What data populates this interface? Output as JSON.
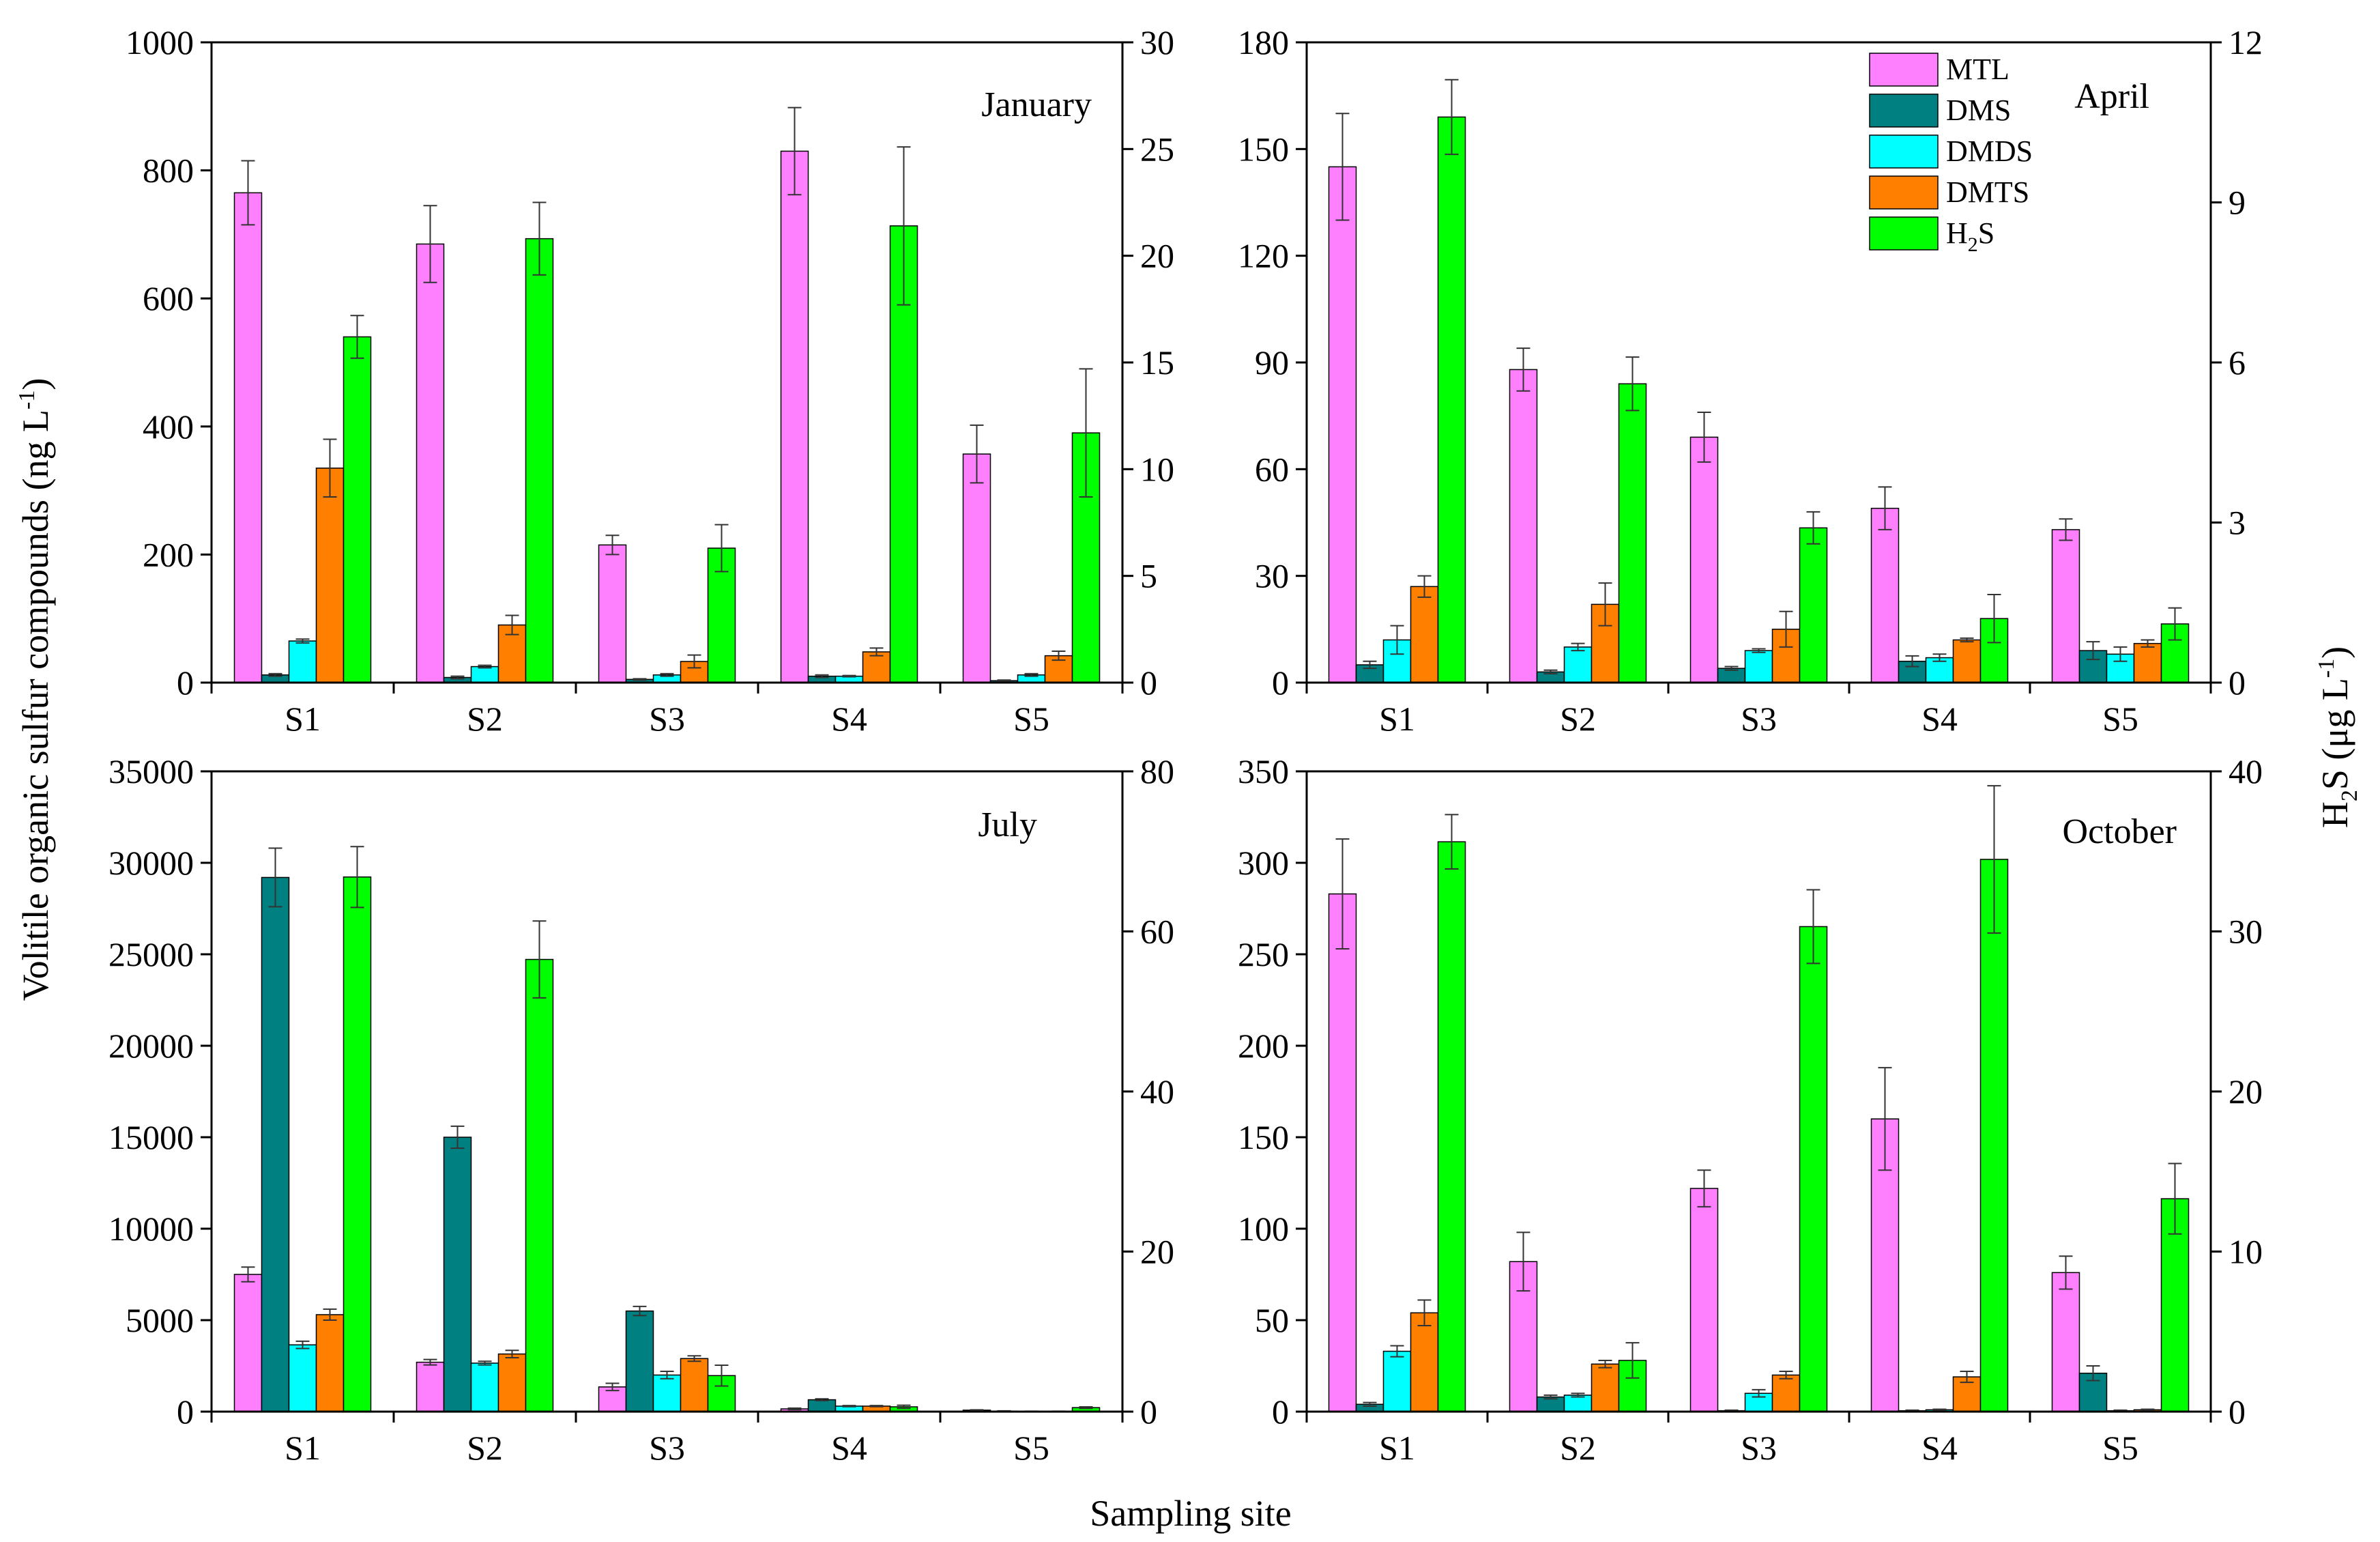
{
  "figure": {
    "y_left_label": "Volitile organic sulfur compounds (ng L",
    "y_left_label_sup": "-1",
    "y_left_label_end": ")",
    "y_right_label_h": "H",
    "y_right_label_sub": "2",
    "y_right_label_rest": "S (μg L",
    "y_right_label_sup": "-1",
    "y_right_label_end": ")",
    "x_label": "Sampling site"
  },
  "legend": [
    {
      "name": "MTL",
      "color": "#ff80ff"
    },
    {
      "name": "DMS",
      "color": "#008080"
    },
    {
      "name": "DMDS",
      "color": "#00ffff"
    },
    {
      "name": "DMTS",
      "color": "#ff8000"
    },
    {
      "name": "H2S",
      "base": "H",
      "sub": "2",
      "rest": "S",
      "color": "#00ff00"
    }
  ],
  "chart_data": [
    {
      "type": "bar",
      "title": "January",
      "categories": [
        "S1",
        "S2",
        "S3",
        "S4",
        "S5"
      ],
      "ylim_left": [
        0,
        1000
      ],
      "yticks_left": [
        0,
        200,
        400,
        600,
        800,
        1000
      ],
      "ylim_right": [
        0,
        30
      ],
      "yticks_right": [
        0,
        5,
        10,
        15,
        20,
        25,
        30
      ],
      "series": [
        {
          "name": "MTL",
          "axis": "left",
          "values": [
            765,
            685,
            215,
            830,
            357
          ],
          "errors": [
            50,
            60,
            15,
            68,
            45
          ]
        },
        {
          "name": "DMS",
          "axis": "left",
          "values": [
            12,
            8,
            5,
            10,
            3
          ],
          "errors": [
            2,
            2,
            1,
            2,
            1
          ]
        },
        {
          "name": "DMDS",
          "axis": "left",
          "values": [
            65,
            25,
            12,
            10,
            12
          ],
          "errors": [
            3,
            2,
            2,
            1,
            2
          ]
        },
        {
          "name": "DMTS",
          "axis": "left",
          "values": [
            335,
            90,
            33,
            48,
            42
          ],
          "errors": [
            45,
            15,
            10,
            6,
            7
          ]
        },
        {
          "name": "H2S",
          "axis": "right",
          "values": [
            16.2,
            20.8,
            6.3,
            21.4,
            11.7
          ],
          "errors": [
            1.0,
            1.7,
            1.1,
            3.7,
            3.0
          ]
        }
      ]
    },
    {
      "type": "bar",
      "title": "April",
      "categories": [
        "S1",
        "S2",
        "S3",
        "S4",
        "S5"
      ],
      "ylim_left": [
        0,
        180
      ],
      "yticks_left": [
        0,
        30,
        60,
        90,
        120,
        150,
        180
      ],
      "ylim_right": [
        0,
        12
      ],
      "yticks_right": [
        0,
        3,
        6,
        9,
        12
      ],
      "series": [
        {
          "name": "MTL",
          "axis": "left",
          "values": [
            145,
            88,
            69,
            49,
            43
          ],
          "errors": [
            15,
            6,
            7,
            6,
            3
          ]
        },
        {
          "name": "DMS",
          "axis": "left",
          "values": [
            5,
            3,
            4,
            6,
            9
          ],
          "errors": [
            1,
            0.5,
            0.5,
            1.5,
            2.5
          ]
        },
        {
          "name": "DMDS",
          "axis": "left",
          "values": [
            12,
            10,
            9,
            7,
            8
          ],
          "errors": [
            4,
            1,
            0.5,
            1,
            2
          ]
        },
        {
          "name": "DMTS",
          "axis": "left",
          "values": [
            27,
            22,
            15,
            12,
            11
          ],
          "errors": [
            3,
            6,
            5,
            0.5,
            1
          ]
        },
        {
          "name": "H2S",
          "axis": "right",
          "values": [
            10.6,
            5.6,
            2.9,
            1.2,
            1.1
          ],
          "errors": [
            0.7,
            0.5,
            0.3,
            0.45,
            0.3
          ]
        }
      ]
    },
    {
      "type": "bar",
      "title": "July",
      "categories": [
        "S1",
        "S2",
        "S3",
        "S4",
        "S5"
      ],
      "ylim_left": [
        0,
        35000
      ],
      "yticks_left": [
        0,
        5000,
        10000,
        15000,
        20000,
        25000,
        30000,
        35000
      ],
      "ylim_right": [
        0,
        80
      ],
      "yticks_right": [
        0,
        20,
        40,
        60,
        80
      ],
      "series": [
        {
          "name": "MTL",
          "axis": "left",
          "values": [
            7500,
            2700,
            1350,
            150,
            80
          ],
          "errors": [
            400,
            150,
            200,
            40,
            20
          ]
        },
        {
          "name": "DMS",
          "axis": "left",
          "values": [
            29200,
            15000,
            5500,
            650,
            30
          ],
          "errors": [
            1600,
            600,
            250,
            50,
            10
          ]
        },
        {
          "name": "DMDS",
          "axis": "left",
          "values": [
            3650,
            2650,
            2000,
            300,
            20
          ],
          "errors": [
            200,
            100,
            200,
            30,
            5
          ]
        },
        {
          "name": "DMTS",
          "axis": "left",
          "values": [
            5300,
            3150,
            2900,
            300,
            20
          ],
          "errors": [
            300,
            200,
            150,
            30,
            5
          ]
        },
        {
          "name": "H2S",
          "axis": "right",
          "values": [
            66.8,
            56.5,
            4.5,
            0.6,
            0.5
          ],
          "errors": [
            3.8,
            4.8,
            1.3,
            0.2,
            0.1
          ]
        }
      ]
    },
    {
      "type": "bar",
      "title": "October",
      "categories": [
        "S1",
        "S2",
        "S3",
        "S4",
        "S5"
      ],
      "ylim_left": [
        0,
        350
      ],
      "yticks_left": [
        0,
        50,
        100,
        150,
        200,
        250,
        300,
        350
      ],
      "ylim_right": [
        0,
        40
      ],
      "yticks_right": [
        0,
        10,
        20,
        30,
        40
      ],
      "series": [
        {
          "name": "MTL",
          "axis": "left",
          "values": [
            283,
            82,
            122,
            160,
            76
          ],
          "errors": [
            30,
            16,
            10,
            28,
            9
          ]
        },
        {
          "name": "DMS",
          "axis": "left",
          "values": [
            4,
            8,
            0.5,
            0.5,
            21
          ],
          "errors": [
            1,
            1,
            0.3,
            0.3,
            4
          ]
        },
        {
          "name": "DMDS",
          "axis": "left",
          "values": [
            33,
            9,
            10,
            1,
            0.5
          ],
          "errors": [
            3,
            1,
            2,
            0.3,
            0.3
          ]
        },
        {
          "name": "DMTS",
          "axis": "left",
          "values": [
            54,
            26,
            20,
            19,
            1
          ],
          "errors": [
            7,
            2,
            2,
            3,
            0.3
          ]
        },
        {
          "name": "H2S",
          "axis": "right",
          "values": [
            35.6,
            3.2,
            30.3,
            34.5,
            13.3
          ],
          "errors": [
            1.7,
            1.1,
            2.3,
            4.6,
            2.2
          ]
        }
      ]
    }
  ]
}
